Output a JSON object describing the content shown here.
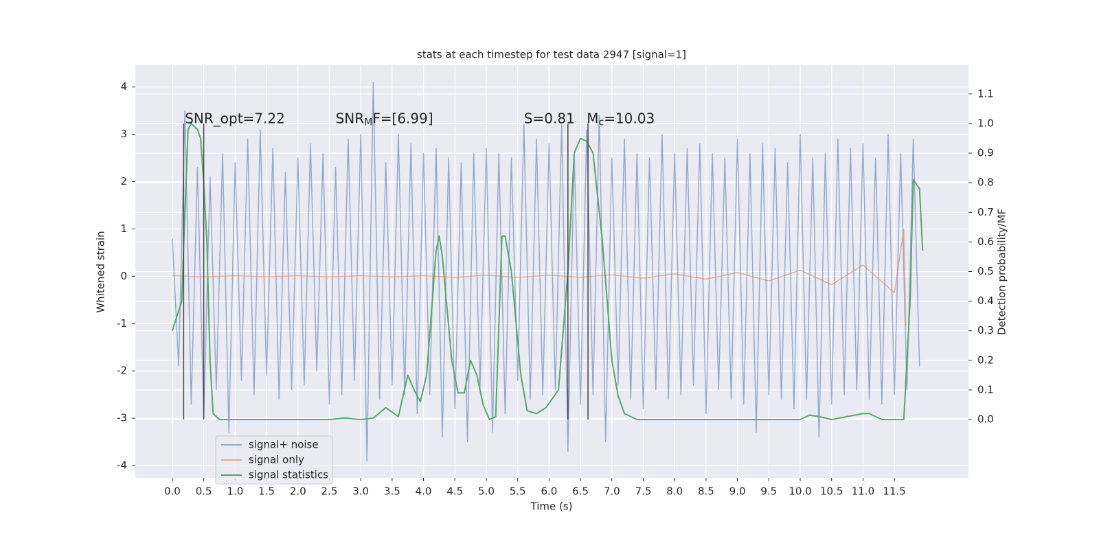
{
  "chart_data": {
    "type": "line",
    "title": "stats at each timestep for test data 2947 [signal=1]",
    "xlabel": "Time (s)",
    "ylabel": "Whitened strain",
    "y2label": "Detection probability/MF",
    "xlim": [
      -0.59,
      12.68
    ],
    "ylim": [
      -4.26,
      4.46
    ],
    "y2lim": [
      -0.197,
      1.197
    ],
    "xticks": [
      {
        "value": 0,
        "label": "0.0"
      },
      {
        "value": 0.5,
        "label": "0.5"
      },
      {
        "value": 1,
        "label": "1.0"
      },
      {
        "value": 1.5,
        "label": "1.5"
      },
      {
        "value": 2,
        "label": "2.0"
      },
      {
        "value": 2.5,
        "label": "2.5"
      },
      {
        "value": 3,
        "label": "3.0"
      },
      {
        "value": 3.5,
        "label": "3.5"
      },
      {
        "value": 4,
        "label": "4.0"
      },
      {
        "value": 4.5,
        "label": "4.5"
      },
      {
        "value": 5,
        "label": "5.0"
      },
      {
        "value": 5.5,
        "label": "5.5"
      },
      {
        "value": 6,
        "label": "6.0"
      },
      {
        "value": 6.5,
        "label": "6.5"
      },
      {
        "value": 7,
        "label": "7.0"
      },
      {
        "value": 7.5,
        "label": "7.5"
      },
      {
        "value": 8,
        "label": "8.0"
      },
      {
        "value": 8.5,
        "label": "8.5"
      },
      {
        "value": 9,
        "label": "9.0"
      },
      {
        "value": 9.5,
        "label": "9.5"
      },
      {
        "value": 10,
        "label": "10.0"
      },
      {
        "value": 10.5,
        "label": "10.5"
      },
      {
        "value": 11,
        "label": "11.0"
      },
      {
        "value": 11.5,
        "label": "11.5"
      }
    ],
    "yticks": [
      -4,
      -3,
      -2,
      -1,
      0,
      1,
      2,
      3,
      4
    ],
    "y2ticks": [
      {
        "value": 0,
        "label": "0.0"
      },
      {
        "value": 0.1,
        "label": "0.1"
      },
      {
        "value": 0.2,
        "label": "0.2"
      },
      {
        "value": 0.3,
        "label": "0.3"
      },
      {
        "value": 0.4,
        "label": "0.4"
      },
      {
        "value": 0.5,
        "label": "0.5"
      },
      {
        "value": 0.6,
        "label": "0.6"
      },
      {
        "value": 0.7,
        "label": "0.7"
      },
      {
        "value": 0.8,
        "label": "0.8"
      },
      {
        "value": 0.9,
        "label": "0.9"
      },
      {
        "value": 1,
        "label": "1.0"
      },
      {
        "value": 1.1,
        "label": "1.1"
      }
    ],
    "grid": true,
    "legend": "lower left",
    "series": [
      {
        "name": "signal+ noise",
        "color": "#4c72b0",
        "x": [
          0,
          0.1,
          0.2,
          0.3,
          0.4,
          0.5,
          0.6,
          0.7,
          0.8,
          0.9,
          1,
          1.1,
          1.2,
          1.3,
          1.4,
          1.5,
          1.6,
          1.7,
          1.8,
          1.9,
          2,
          2.1,
          2.2,
          2.3,
          2.4,
          2.5,
          2.6,
          2.7,
          2.8,
          2.9,
          3,
          3.1,
          3.2,
          3.3,
          3.4,
          3.5,
          3.6,
          3.7,
          3.8,
          3.9,
          4,
          4.1,
          4.2,
          4.3,
          4.4,
          4.5,
          4.6,
          4.7,
          4.8,
          4.9,
          5,
          5.1,
          5.2,
          5.3,
          5.4,
          5.5,
          5.6,
          5.7,
          5.8,
          5.9,
          6,
          6.1,
          6.2,
          6.3,
          6.4,
          6.5,
          6.6,
          6.7,
          6.8,
          6.9,
          7,
          7.1,
          7.2,
          7.3,
          7.4,
          7.5,
          7.6,
          7.7,
          7.8,
          7.9,
          8,
          8.1,
          8.2,
          8.3,
          8.4,
          8.5,
          8.6,
          8.7,
          8.8,
          8.9,
          9,
          9.1,
          9.2,
          9.3,
          9.4,
          9.5,
          9.6,
          9.7,
          9.8,
          9.9,
          10,
          10.1,
          10.2,
          10.3,
          10.4,
          10.5,
          10.6,
          10.7,
          10.8,
          10.9,
          11,
          11.1,
          11.2,
          11.3,
          11.4,
          11.5,
          11.6,
          11.7,
          11.8,
          11.9
        ],
        "values": [
          0.8,
          -1.9,
          3.5,
          -2.7,
          2.3,
          -3.0,
          2.1,
          -2.4,
          2.6,
          -3.3,
          2.4,
          -2.2,
          2.9,
          -2.5,
          3.1,
          -2.1,
          2.7,
          -2.6,
          2.2,
          -2.4,
          2.5,
          -2.3,
          2.8,
          -2.0,
          2.6,
          -2.7,
          2.3,
          -2.5,
          2.9,
          -2.2,
          3.0,
          -3.9,
          4.1,
          -2.6,
          2.4,
          -2.3,
          3.0,
          -2.5,
          2.8,
          -2.9,
          2.6,
          -2.5,
          2.7,
          -3.4,
          2.5,
          -2.8,
          2.4,
          -3.5,
          2.6,
          -2.4,
          2.7,
          -3.3,
          2.6,
          -2.9,
          2.5,
          -2.2,
          3.2,
          -2.6,
          2.9,
          -2.5,
          2.8,
          -2.4,
          3.2,
          -3.7,
          2.6,
          -2.7,
          3.1,
          -2.5,
          3.4,
          -3.5,
          2.5,
          -2.3,
          2.9,
          -2.6,
          2.6,
          -2.8,
          2.5,
          -2.4,
          3.0,
          -2.6,
          2.6,
          -2.5,
          2.7,
          -2.3,
          2.8,
          -2.9,
          2.6,
          -2.4,
          2.5,
          -2.6,
          2.9,
          -2.7,
          2.6,
          -3.3,
          2.8,
          -2.5,
          2.7,
          -2.6,
          2.4,
          -2.8,
          3.0,
          -2.6,
          2.5,
          -3.4,
          2.6,
          -2.7,
          2.9,
          -2.5,
          2.7,
          -2.4,
          2.8,
          -2.6,
          2.5,
          -2.7,
          3.0,
          -2.5,
          2.6,
          -2.4,
          2.9,
          -1.9
        ]
      },
      {
        "name": "signal only",
        "color": "#dd8452",
        "x": [
          0,
          0.5,
          1,
          1.5,
          2,
          2.5,
          3,
          3.5,
          4,
          4.5,
          5,
          5.5,
          6,
          6.5,
          7,
          7.5,
          8,
          8.5,
          9,
          9.5,
          10,
          10.5,
          11,
          11.5,
          11.6,
          11.65,
          11.68
        ],
        "values": [
          0.01,
          -0.01,
          0.01,
          -0.01,
          0.01,
          -0.01,
          0.01,
          -0.01,
          0.01,
          -0.02,
          0.02,
          -0.02,
          0.02,
          -0.02,
          0.03,
          -0.04,
          0.05,
          -0.06,
          0.08,
          -0.1,
          0.13,
          -0.18,
          0.24,
          -0.35,
          0.55,
          1.0,
          -1.05
        ]
      },
      {
        "name": "signal statistics",
        "color": "#55a868",
        "axis": "y2",
        "x": [
          0,
          0.15,
          0.2,
          0.25,
          0.3,
          0.4,
          0.45,
          0.5,
          0.55,
          0.6,
          0.65,
          0.75,
          1,
          2.5,
          2.75,
          3,
          3.2,
          3.4,
          3.6,
          3.75,
          3.85,
          3.95,
          4.05,
          4.2,
          4.25,
          4.3,
          4.45,
          4.55,
          4.65,
          4.75,
          4.85,
          4.95,
          5.05,
          5.15,
          5.25,
          5.3,
          5.4,
          5.55,
          5.65,
          5.8,
          5.95,
          6.15,
          6.3,
          6.4,
          6.5,
          6.6,
          6.7,
          6.85,
          7,
          7.1,
          7.2,
          7.4,
          10,
          10.15,
          10.3,
          10.5,
          11,
          11.1,
          11.3,
          11.65,
          11.75,
          11.8,
          11.9,
          11.95
        ],
        "values": [
          0.3,
          0.4,
          0.7,
          0.98,
          1.0,
          0.98,
          0.95,
          0.8,
          0.6,
          0.2,
          0.02,
          0.0,
          0.0,
          0.0,
          0.005,
          0.0,
          0.005,
          0.04,
          0.01,
          0.15,
          0.1,
          0.06,
          0.15,
          0.57,
          0.62,
          0.55,
          0.2,
          0.09,
          0.09,
          0.2,
          0.15,
          0.05,
          0.0,
          0.01,
          0.62,
          0.62,
          0.5,
          0.15,
          0.03,
          0.02,
          0.04,
          0.1,
          0.5,
          0.9,
          0.95,
          0.94,
          0.9,
          0.6,
          0.2,
          0.08,
          0.02,
          0.0,
          0.0,
          0.015,
          0.01,
          0.0,
          0.02,
          0.02,
          0.0,
          0.0,
          0.4,
          0.81,
          0.78,
          0.57
        ]
      }
    ],
    "vlines": [
      0.18,
      0.5,
      6.3,
      6.62
    ],
    "vline_range": [
      0,
      1.0
    ],
    "annotations": [
      {
        "parts": [
          "SNR_opt=7.22"
        ],
        "x": 0.2,
        "y": 3.32
      },
      {
        "parts": [
          "SNR",
          "M",
          "F=[6.99]"
        ],
        "x": 2.6,
        "y": 3.32
      },
      {
        "parts": [
          "S=0.81"
        ],
        "x": 5.6,
        "y": 3.32
      },
      {
        "parts": [
          "M",
          "c",
          "=10.03"
        ],
        "x": 6.6,
        "y": 3.32
      }
    ]
  }
}
